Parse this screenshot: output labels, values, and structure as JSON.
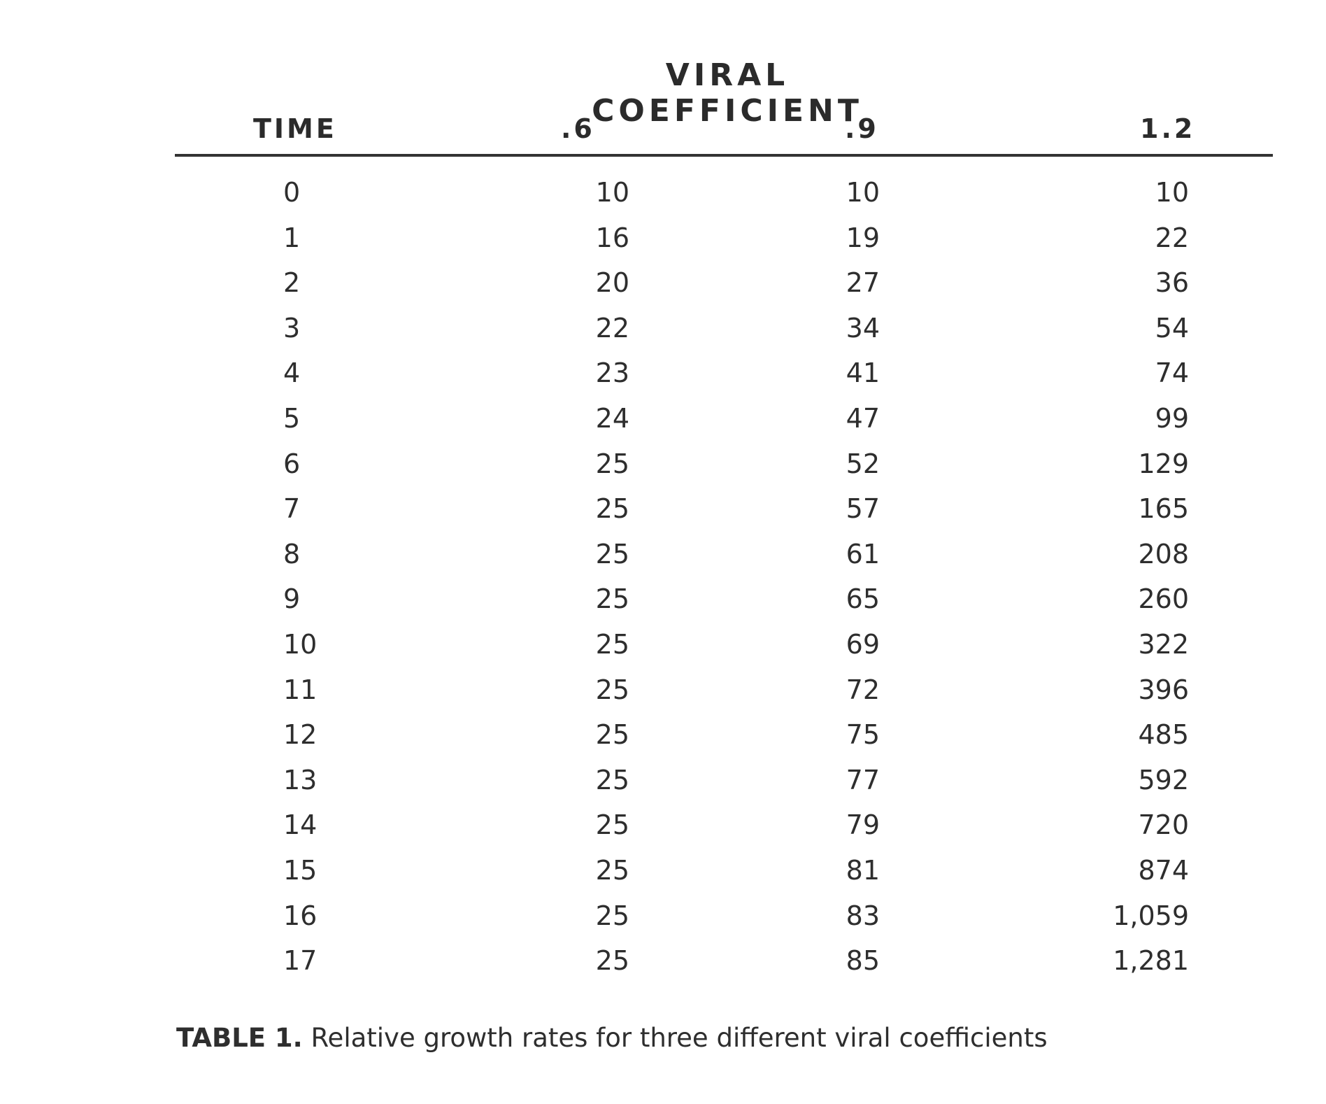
{
  "table": {
    "super_heading": "VIRAL COEFFICIENT",
    "headers": [
      "TIME",
      ".6",
      ".9",
      "1.2"
    ],
    "rows": [
      [
        "0",
        "10",
        "10",
        "10"
      ],
      [
        "1",
        "16",
        "19",
        "22"
      ],
      [
        "2",
        "20",
        "27",
        "36"
      ],
      [
        "3",
        "22",
        "34",
        "54"
      ],
      [
        "4",
        "23",
        "41",
        "74"
      ],
      [
        "5",
        "24",
        "47",
        "99"
      ],
      [
        "6",
        "25",
        "52",
        "129"
      ],
      [
        "7",
        "25",
        "57",
        "165"
      ],
      [
        "8",
        "25",
        "61",
        "208"
      ],
      [
        "9",
        "25",
        "65",
        "260"
      ],
      [
        "10",
        "25",
        "69",
        "322"
      ],
      [
        "11",
        "25",
        "72",
        "396"
      ],
      [
        "12",
        "25",
        "75",
        "485"
      ],
      [
        "13",
        "25",
        "77",
        "592"
      ],
      [
        "14",
        "25",
        "79",
        "720"
      ],
      [
        "15",
        "25",
        "81",
        "874"
      ],
      [
        "16",
        "25",
        "83",
        "1,059"
      ],
      [
        "17",
        "25",
        "85",
        "1,281"
      ]
    ]
  },
  "caption": {
    "label": "TABLE 1.",
    "text": " Relative growth rates for three different viral coefficients"
  }
}
